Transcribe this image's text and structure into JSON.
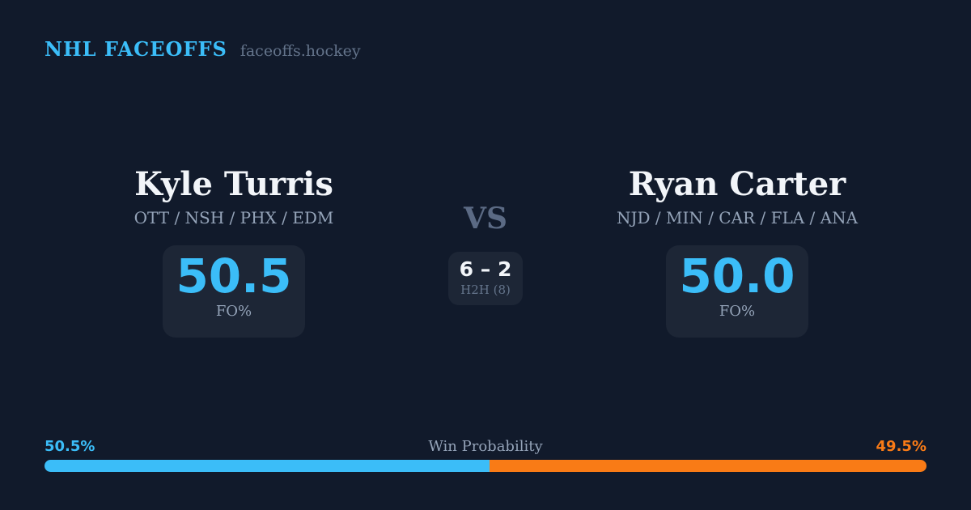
{
  "brand": {
    "title": "NHL FACEOFFS",
    "domain": "faceoffs.hockey"
  },
  "matchup": {
    "left_player": {
      "name": "Kyle Turris",
      "teams": "OTT / NSH / PHX / EDM",
      "stat_value": "50.5",
      "stat_label": "FO%"
    },
    "right_player": {
      "name": "Ryan Carter",
      "teams": "NJD / MIN / CAR / FLA / ANA",
      "stat_value": "50.0",
      "stat_label": "FO%"
    },
    "center": {
      "vs_label": "VS",
      "h2h_score": "6 – 2",
      "h2h_sample": "H2H (8)"
    }
  },
  "win_probability": {
    "label": "Win Probability",
    "left_pct_label": "50.5%",
    "right_pct_label": "49.5%",
    "left_value": 50.5,
    "right_value": 49.5
  },
  "colors": {
    "background": "#111a2b",
    "card_background": "#1d2636",
    "accent_blue": "#3bbdf8",
    "accent_orange": "#f97b16",
    "text_primary": "#f2f5f9",
    "text_secondary": "#94a3b8",
    "text_muted": "#64748b",
    "vs_gray": "#5b6a84"
  }
}
